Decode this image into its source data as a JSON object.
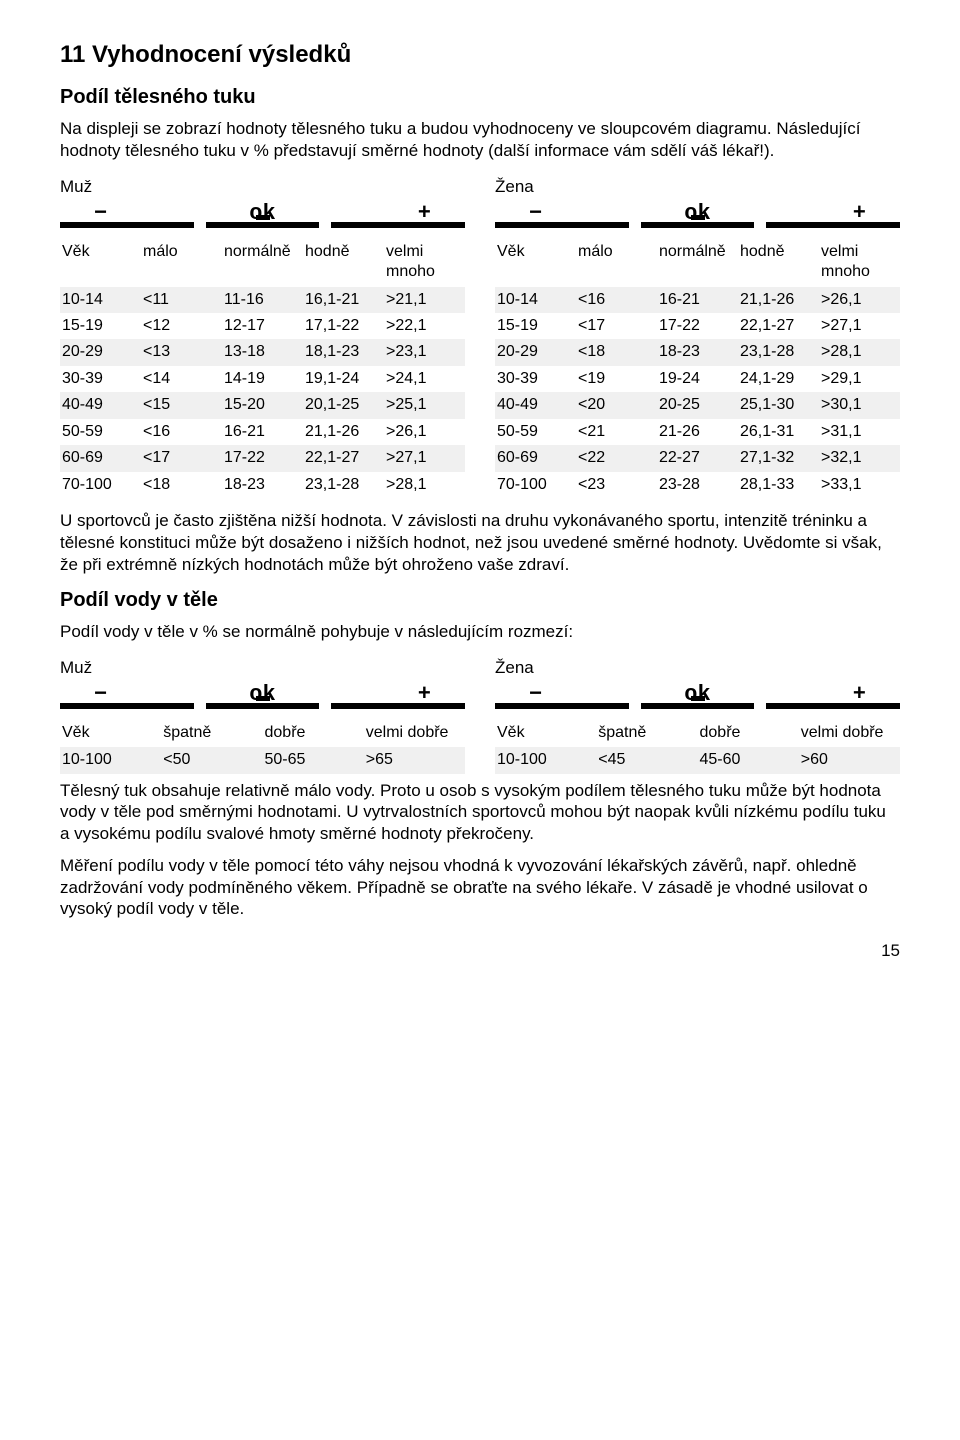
{
  "page": {
    "h1": "11 Vyhodnocení výsledků",
    "sec1_title": "Podíl tělesného tuku",
    "sec1_p1": "Na displeji se zobrazí hodnoty tělesného tuku a budou vyhodnoceny ve sloupcovém diagramu. Následující hodnoty tělesného tuku v % představují směrné hodnoty (další informace vám sdělí váš lékař!).",
    "male": "Muž",
    "female": "Žena",
    "minus": "−",
    "ok": "ok",
    "plus": "+",
    "sec1_note": "U sportovců je často zjištěna nižší hodnota. V závislosti na druhu vykonávaného sportu, intenzitě tréninku a tělesné konstituci může být dosaženo i nižších hodnot, než jsou uvedené směrné hodnoty. Uvědomte si však, že při extrémně nízkých hodnotách může být ohroženo vaše zdraví.",
    "sec2_title": "Podíl vody v těle",
    "sec2_p1": "Podíl vody v těle v % se normálně pohybuje v následujícím rozmezí:",
    "sec2_note1": "Tělesný tuk obsahuje relativně málo vody. Proto u osob s vysokým podílem tělesného tuku může být hodnota vody v těle pod směrnými hodnotami. U vytrvalostních sportovců mohou být naopak kvůli nízkému podílu tuku a vysokému podílu svalové hmoty směrné hodnoty překročeny.",
    "sec2_note2": "Měření podílu vody v těle pomocí této váhy nejsou vhodná k vyvozování lékařských závěrů, např. ohledně zadržování vody podmíněného věkem. Případně se obraťte na svého lékaře. V zásadě je vhodné usilovat o vysoký podíl vody v těle.",
    "pagenum": "15"
  },
  "fat": {
    "headers5": [
      "Věk",
      "málo",
      "normálně",
      "hodně",
      "velmi mnoho"
    ],
    "male": [
      [
        "10-14",
        "<11",
        "11-16",
        "16,1-21",
        ">21,1"
      ],
      [
        "15-19",
        "<12",
        "12-17",
        "17,1-22",
        ">22,1"
      ],
      [
        "20-29",
        "<13",
        "13-18",
        "18,1-23",
        ">23,1"
      ],
      [
        "30-39",
        "<14",
        "14-19",
        "19,1-24",
        ">24,1"
      ],
      [
        "40-49",
        "<15",
        "15-20",
        "20,1-25",
        ">25,1"
      ],
      [
        "50-59",
        "<16",
        "16-21",
        "21,1-26",
        ">26,1"
      ],
      [
        "60-69",
        "<17",
        "17-22",
        "22,1-27",
        ">27,1"
      ],
      [
        "70-100",
        "<18",
        "18-23",
        "23,1-28",
        ">28,1"
      ]
    ],
    "female": [
      [
        "10-14",
        "<16",
        "16-21",
        "21,1-26",
        ">26,1"
      ],
      [
        "15-19",
        "<17",
        "17-22",
        "22,1-27",
        ">27,1"
      ],
      [
        "20-29",
        "<18",
        "18-23",
        "23,1-28",
        ">28,1"
      ],
      [
        "30-39",
        "<19",
        "19-24",
        "24,1-29",
        ">29,1"
      ],
      [
        "40-49",
        "<20",
        "20-25",
        "25,1-30",
        ">30,1"
      ],
      [
        "50-59",
        "<21",
        "21-26",
        "26,1-31",
        ">31,1"
      ],
      [
        "60-69",
        "<22",
        "22-27",
        "27,1-32",
        ">32,1"
      ],
      [
        "70-100",
        "<23",
        "23-28",
        "28,1-33",
        ">33,1"
      ]
    ]
  },
  "water": {
    "headers4": [
      "Věk",
      "špatně",
      "dobře",
      "velmi dobře"
    ],
    "male": [
      [
        "10-100",
        "<50",
        "50-65",
        ">65"
      ]
    ],
    "female": [
      [
        "10-100",
        "<45",
        "45-60",
        ">60"
      ]
    ]
  }
}
